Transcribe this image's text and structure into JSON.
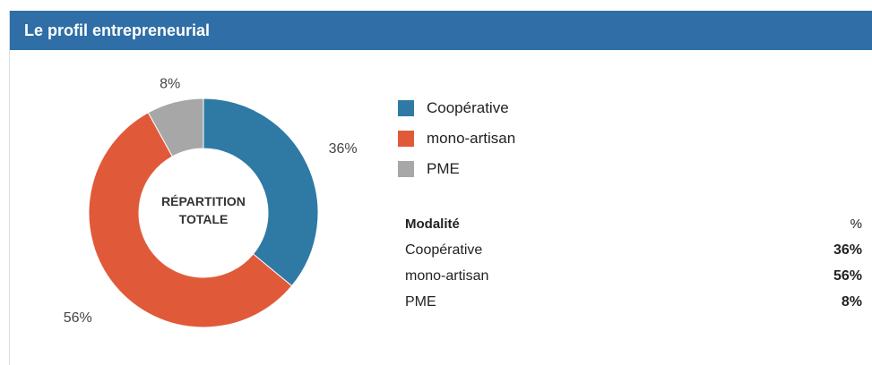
{
  "header": {
    "title": "Le profil entrepreneurial"
  },
  "chart_data": {
    "type": "pie",
    "donut": true,
    "center_label": [
      "RÉPARTITION",
      "TOTALE"
    ],
    "slices": [
      {
        "name": "Coopérative",
        "value": 36,
        "label": "36%",
        "color": "#2e7aa5"
      },
      {
        "name": "mono-artisan",
        "value": 56,
        "label": "56%",
        "color": "#e05a3a"
      },
      {
        "name": "PME",
        "value": 8,
        "label": "8%",
        "color": "#a7a7a7"
      }
    ],
    "legend_position": "right"
  },
  "table": {
    "header": {
      "modalite": "Modalité",
      "pct": "%"
    },
    "rows": [
      {
        "name": "Coopérative",
        "pct": "36%"
      },
      {
        "name": "mono-artisan",
        "pct": "56%"
      },
      {
        "name": "PME",
        "pct": "8%"
      }
    ]
  }
}
